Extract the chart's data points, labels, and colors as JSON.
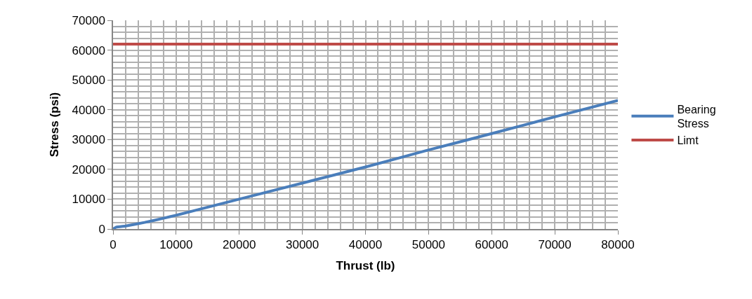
{
  "chart_data": {
    "type": "line",
    "xlabel": "Thrust (lb)",
    "ylabel": "Stress (psi)",
    "xlim": [
      0,
      80000
    ],
    "xticks": [
      0,
      10000,
      20000,
      30000,
      40000,
      50000,
      60000,
      70000,
      80000
    ],
    "ylim": [
      0,
      70000
    ],
    "yticks": [
      0,
      10000,
      20000,
      30000,
      40000,
      50000,
      60000,
      70000
    ],
    "grid": true,
    "legend": "right",
    "marker": "none",
    "line_style": "solid",
    "series": [
      {
        "name": "Bearing Stress",
        "color": "#4a7ebb",
        "x": [
          0,
          500,
          2000,
          5000,
          8000,
          10000,
          15000,
          20000,
          30000,
          40000,
          50000,
          60000,
          70000,
          80000
        ],
        "values": [
          0,
          600,
          1000,
          2200,
          3600,
          4600,
          7300,
          10000,
          15400,
          20800,
          26500,
          32000,
          37600,
          43100
        ]
      },
      {
        "name": "Limt",
        "color": "#be4b48",
        "x": [
          0,
          80000
        ],
        "values": [
          62000,
          62000
        ]
      }
    ]
  }
}
